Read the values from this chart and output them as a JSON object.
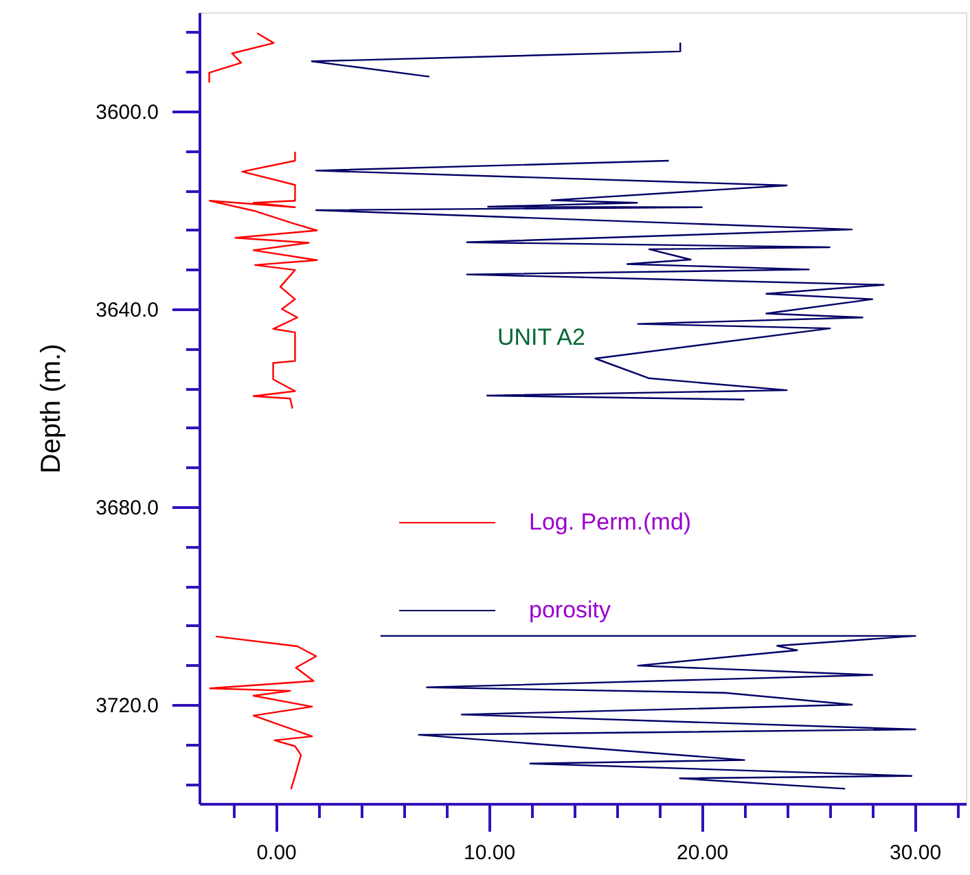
{
  "chart_data": {
    "type": "line",
    "ylabel": "Depth (m.)",
    "xlim": [
      -3.6,
      32.4
    ],
    "ylim": [
      3740,
      3580
    ],
    "xticks": [
      {
        "value": -2,
        "label": null
      },
      {
        "value": 0,
        "label": "0.00"
      },
      {
        "value": 2,
        "label": null
      },
      {
        "value": 4,
        "label": null
      },
      {
        "value": 6,
        "label": null
      },
      {
        "value": 8,
        "label": null
      },
      {
        "value": 10,
        "label": "10.00"
      },
      {
        "value": 12,
        "label": null
      },
      {
        "value": 14,
        "label": null
      },
      {
        "value": 16,
        "label": null
      },
      {
        "value": 18,
        "label": null
      },
      {
        "value": 20,
        "label": "20.00"
      },
      {
        "value": 22,
        "label": null
      },
      {
        "value": 24,
        "label": null
      },
      {
        "value": 26,
        "label": null
      },
      {
        "value": 28,
        "label": null
      },
      {
        "value": 30,
        "label": "30.00"
      },
      {
        "value": 32,
        "label": null
      }
    ],
    "yticks": [
      {
        "value": 3584,
        "label": null
      },
      {
        "value": 3592,
        "label": null
      },
      {
        "value": 3600,
        "label": "3600.0"
      },
      {
        "value": 3608,
        "label": null
      },
      {
        "value": 3616,
        "label": null
      },
      {
        "value": 3624,
        "label": null
      },
      {
        "value": 3632,
        "label": null
      },
      {
        "value": 3640,
        "label": "3640.0"
      },
      {
        "value": 3648,
        "label": null
      },
      {
        "value": 3656,
        "label": null
      },
      {
        "value": 3664,
        "label": null
      },
      {
        "value": 3672,
        "label": null
      },
      {
        "value": 3680,
        "label": "3680.0"
      },
      {
        "value": 3688,
        "label": null
      },
      {
        "value": 3696,
        "label": null
      },
      {
        "value": 3704,
        "label": null
      },
      {
        "value": 3712,
        "label": null
      },
      {
        "value": 3720,
        "label": "3720.0"
      },
      {
        "value": 3728,
        "label": null
      },
      {
        "value": 3736,
        "label": null
      }
    ],
    "grid": false,
    "legend": "center",
    "marker": "none",
    "line_style": "solid",
    "annotations": [
      "UNIT A2"
    ],
    "series": [
      {
        "name": "Log. Perm.(md)",
        "color": "#ff0000",
        "x": [
          -0.88,
          -0.1,
          -2.06,
          -1.63,
          -3.13,
          -3.13,
          null,
          0.9,
          0.9,
          -1.58,
          0.9,
          0.9,
          -1.05,
          0.9,
          -3.11,
          -1.05,
          0.9,
          1.93,
          -1.9,
          1.54,
          -1.05,
          1.93,
          -0.98,
          0.9,
          0.21,
          0.9,
          0.28,
          1.01,
          -0.13,
          0.9,
          0.9,
          -0.13,
          -0.13,
          0.9,
          -1.05,
          0.67,
          0.78,
          null,
          -2.82,
          1.01,
          1.89,
          0.94,
          1.77,
          -3.09,
          0.67,
          -1.05,
          1.7,
          -1.05,
          1.7,
          -0.06,
          0.9,
          1.18,
          0.9,
          0.71
        ],
        "values": [
          3584.2,
          3586.2,
          3588.3,
          3590.2,
          3592.2,
          3594.2,
          null,
          3608.2,
          3610.0,
          3612.2,
          3614.9,
          3618.1,
          3618.5,
          3619.4,
          3618.1,
          3620.1,
          3622.8,
          3624.1,
          3625.6,
          3626.6,
          3628.1,
          3630.1,
          3631.1,
          3632.1,
          3635.5,
          3638.0,
          3640.0,
          3641.7,
          3644.0,
          3644.7,
          3650.5,
          3650.9,
          3654.2,
          3656.6,
          3657.6,
          3658.1,
          3660.1,
          null,
          3706.2,
          3708.2,
          3710.2,
          3712.5,
          3715.2,
          3716.7,
          3717.2,
          3718.2,
          3720.4,
          3722.2,
          3726.4,
          3727.2,
          3728.4,
          3730.2,
          3734.4,
          3737.1
        ]
      },
      {
        "name": "porosity",
        "color": "#000066",
        "x": [
          18.99,
          18.99,
          1.69,
          7.21,
          null,
          18.45,
          1.89,
          23.99,
          12.94,
          16.96,
          9.96,
          20.0,
          1.89,
          27.05,
          8.97,
          26.0,
          17.53,
          19.48,
          16.5,
          25.03,
          8.97,
          28.54,
          23.03,
          28.01,
          23.03,
          27.55,
          17.0,
          26.02,
          15.0,
          17.53,
          23.99,
          9.92,
          22.0,
          null,
          4.91,
          30.03,
          23.54,
          24.48,
          17.0,
          28.01,
          7.09,
          21.09,
          27.05,
          8.72,
          30.03,
          6.71,
          22.0,
          11.94,
          29.85,
          18.97,
          26.73
        ],
        "values": [
          3586.1,
          3587.9,
          3589.9,
          3593.0,
          null,
          3610.0,
          3612.0,
          3615.0,
          3618.0,
          3618.5,
          3619.3,
          3619.4,
          3620.0,
          3623.9,
          3626.5,
          3627.5,
          3627.9,
          3630.0,
          3630.9,
          3632.0,
          3633.0,
          3635.1,
          3636.9,
          3638.0,
          3640.9,
          3641.7,
          3643.0,
          3643.9,
          3650.0,
          3654.0,
          3656.4,
          3657.5,
          3658.3,
          null,
          3706.1,
          3706.1,
          3708.1,
          3709.0,
          3712.1,
          3714.0,
          3716.5,
          3717.6,
          3720.0,
          3722.0,
          3725.0,
          3726.1,
          3731.2,
          3731.9,
          3734.4,
          3734.9,
          3737.0
        ]
      }
    ]
  }
}
